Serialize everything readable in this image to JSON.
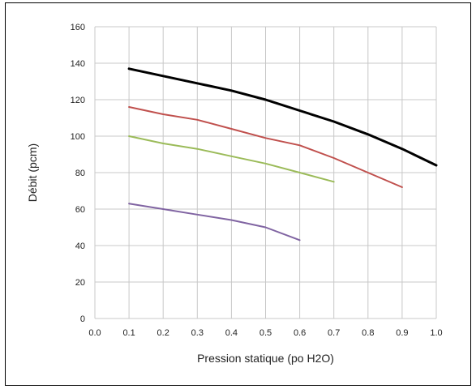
{
  "chart_data": {
    "type": "line",
    "xlabel": "Pression statique (po H2O)",
    "ylabel": "Débit (pcm)",
    "xlim": [
      0.0,
      1.0
    ],
    "ylim": [
      0,
      160
    ],
    "x_ticks": [
      "0.0",
      "0.1",
      "0.2",
      "0.3",
      "0.4",
      "0.5",
      "0.6",
      "0.7",
      "0.8",
      "0.9",
      "1.0"
    ],
    "y_ticks": [
      "0",
      "20",
      "40",
      "60",
      "80",
      "100",
      "120",
      "140",
      "160"
    ],
    "grid": true,
    "legend": "none",
    "series": [
      {
        "color": "#000000",
        "x": [
          0.1,
          0.2,
          0.3,
          0.4,
          0.5,
          0.6,
          0.7,
          0.8,
          0.9,
          1.0
        ],
        "y": [
          137,
          133,
          129,
          125,
          120,
          114,
          108,
          101,
          93,
          84
        ]
      },
      {
        "color": "#c0504d",
        "x": [
          0.1,
          0.2,
          0.3,
          0.4,
          0.5,
          0.6,
          0.7,
          0.8,
          0.9
        ],
        "y": [
          116,
          112,
          109,
          104,
          99,
          95,
          88,
          80,
          72
        ]
      },
      {
        "color": "#9bbb59",
        "x": [
          0.1,
          0.2,
          0.3,
          0.4,
          0.5,
          0.6,
          0.7
        ],
        "y": [
          100,
          96,
          93,
          89,
          85,
          80,
          75
        ]
      },
      {
        "color": "#8064a2",
        "x": [
          0.1,
          0.2,
          0.3,
          0.4,
          0.5,
          0.6
        ],
        "y": [
          63,
          60,
          57,
          54,
          50,
          43
        ]
      }
    ]
  }
}
